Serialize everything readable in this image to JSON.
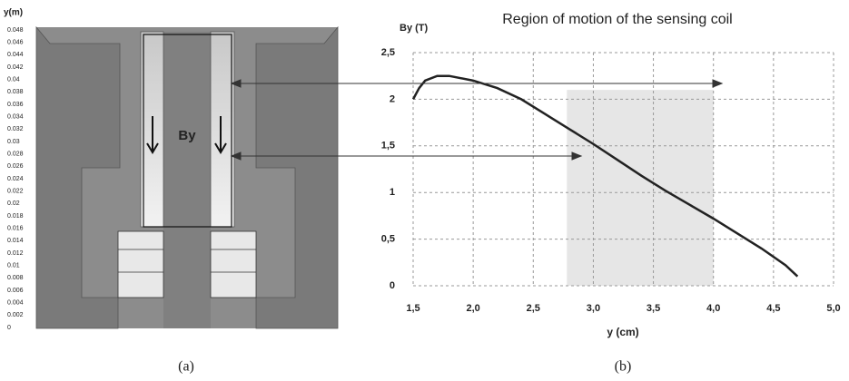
{
  "figure_a": {
    "y_label": "y(m)",
    "ylim": [
      0,
      0.048
    ],
    "yticks": [
      0,
      0.002,
      0.004,
      0.006,
      0.008,
      0.01,
      0.012,
      0.014,
      0.016,
      0.018,
      0.02,
      0.022,
      0.024,
      0.026,
      0.028,
      0.03,
      0.032,
      0.034,
      0.036,
      0.038,
      0.04,
      0.042,
      0.044,
      0.046,
      0.048
    ],
    "label": "By",
    "caption": "(a)"
  },
  "chart_data": {
    "type": "line",
    "title": "Region of motion of the sensing coil",
    "x_label": "y (cm)",
    "y_label": "By (T)",
    "caption": "(b)",
    "x": [
      1.5,
      1.55,
      1.6,
      1.7,
      1.8,
      2.0,
      2.2,
      2.4,
      2.6,
      2.8,
      3.0,
      3.2,
      3.4,
      3.6,
      3.8,
      4.0,
      4.2,
      4.4,
      4.6,
      4.7
    ],
    "series": [
      {
        "color": "#222222",
        "values": [
          2.0,
          2.12,
          2.2,
          2.25,
          2.25,
          2.2,
          2.12,
          2.0,
          1.84,
          1.68,
          1.52,
          1.35,
          1.18,
          1.02,
          0.87,
          0.72,
          0.56,
          0.4,
          0.22,
          0.1
        ]
      }
    ],
    "xlim": [
      1.5,
      5.0
    ],
    "xticks": [
      {
        "value": 1.5,
        "label": "1,5"
      },
      {
        "value": 2.0,
        "label": "2,0"
      },
      {
        "value": 2.5,
        "label": "2,5"
      },
      {
        "value": 3.0,
        "label": "3,0"
      },
      {
        "value": 3.5,
        "label": "3,5"
      },
      {
        "value": 4.0,
        "label": "4,0"
      },
      {
        "value": 4.5,
        "label": "4,5"
      },
      {
        "value": 5.0,
        "label": "5,0"
      }
    ],
    "ylim": [
      0,
      2.5
    ],
    "yticks": [
      0,
      {
        "value": 0.5,
        "label": "0,5"
      },
      1,
      {
        "value": 1.5,
        "label": "1,5"
      },
      2,
      {
        "value": 2.5,
        "label": "2,5"
      }
    ],
    "grid": true,
    "highlight": {
      "xlim": [
        2.78,
        4.0
      ],
      "ylim": [
        0,
        2.1
      ],
      "color": "#e6e6e6"
    }
  }
}
